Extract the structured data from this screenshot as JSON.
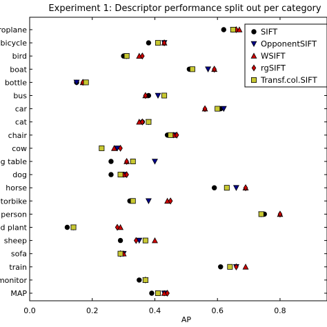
{
  "chart_data": {
    "type": "scatter",
    "title": "Experiment 1: Descriptor performance split out per category",
    "xlabel": "AP",
    "ylabel": "",
    "xlim": [
      0.0,
      0.95
    ],
    "xticks": [
      "0.0",
      "0.2",
      "0.4",
      "0.6",
      "0.8"
    ],
    "xtick_values": [
      0.0,
      0.2,
      0.4,
      0.6,
      0.8
    ],
    "grid": false,
    "legend_position": "top-right",
    "categories": [
      "aeroplane",
      "bicycle",
      "bird",
      "boat",
      "bottle",
      "bus",
      "car",
      "cat",
      "chair",
      "cow",
      "dining table",
      "dog",
      "horse",
      "motorbike",
      "person",
      "potted plant",
      "sheep",
      "sofa",
      "train",
      "tv/monitor",
      "MAP"
    ],
    "series": [
      {
        "name": "SIFT",
        "marker": "circle",
        "color": "#000000",
        "values": [
          0.62,
          0.38,
          0.3,
          0.51,
          0.15,
          0.38,
          0.61,
          0.36,
          0.44,
          0.23,
          0.26,
          0.26,
          0.59,
          0.32,
          0.75,
          0.12,
          0.29,
          0.29,
          0.61,
          0.35,
          0.39
        ]
      },
      {
        "name": "OpponentSIFT",
        "marker": "triangle-down",
        "color": "#00008b",
        "values": [
          0.65,
          0.43,
          0.31,
          0.57,
          0.15,
          0.41,
          0.62,
          0.38,
          0.46,
          0.28,
          0.4,
          0.3,
          0.66,
          0.38,
          0.74,
          0.14,
          0.35,
          0.3,
          0.66,
          0.37,
          0.43
        ]
      },
      {
        "name": "WSIFT",
        "marker": "triangle-up",
        "color": "#cc0000",
        "values": [
          0.67,
          0.43,
          0.35,
          0.59,
          0.17,
          0.37,
          0.56,
          0.35,
          0.46,
          0.27,
          0.31,
          0.3,
          0.69,
          0.44,
          0.8,
          0.29,
          0.4,
          0.3,
          0.69,
          0.37,
          0.43
        ]
      },
      {
        "name": "rgSIFT",
        "marker": "diamond",
        "color": "#cc0000",
        "values": [
          0.66,
          0.43,
          0.36,
          0.59,
          0.17,
          0.37,
          0.56,
          0.36,
          0.47,
          0.29,
          0.31,
          0.31,
          0.69,
          0.45,
          0.8,
          0.28,
          0.34,
          0.29,
          0.66,
          0.37,
          0.44
        ]
      },
      {
        "name": "Transf.col.SIFT",
        "marker": "square",
        "color": "#c8c832",
        "values": [
          0.65,
          0.41,
          0.31,
          0.52,
          0.18,
          0.43,
          0.6,
          0.38,
          0.45,
          0.23,
          0.33,
          0.29,
          0.63,
          0.33,
          0.74,
          0.14,
          0.37,
          0.29,
          0.64,
          0.37,
          0.41
        ]
      }
    ]
  }
}
